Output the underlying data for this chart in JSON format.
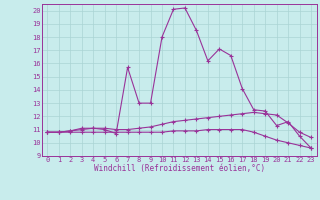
{
  "xlabel": "Windchill (Refroidissement éolien,°C)",
  "bg_color": "#c8ecec",
  "grid_color": "#aad4d4",
  "line_color": "#993399",
  "xlim": [
    -0.5,
    23.5
  ],
  "ylim": [
    9,
    20.5
  ],
  "xticks": [
    0,
    1,
    2,
    3,
    4,
    5,
    6,
    7,
    8,
    9,
    10,
    11,
    12,
    13,
    14,
    15,
    16,
    17,
    18,
    19,
    20,
    21,
    22,
    23
  ],
  "yticks": [
    9,
    10,
    11,
    12,
    13,
    14,
    15,
    16,
    17,
    18,
    19,
    20
  ],
  "curve1_x": [
    0,
    1,
    2,
    3,
    4,
    5,
    6,
    7,
    8,
    9,
    10,
    11,
    12,
    13,
    14,
    15,
    16,
    17,
    18,
    19,
    20,
    21,
    22,
    23
  ],
  "curve1_y": [
    10.8,
    10.8,
    10.9,
    11.1,
    11.1,
    11.0,
    10.7,
    15.7,
    13.0,
    13.0,
    18.0,
    20.1,
    20.2,
    18.5,
    16.2,
    17.1,
    16.6,
    14.1,
    12.5,
    12.4,
    11.3,
    11.6,
    10.5,
    9.6
  ],
  "curve2_x": [
    0,
    1,
    2,
    3,
    4,
    5,
    6,
    7,
    8,
    9,
    10,
    11,
    12,
    13,
    14,
    15,
    16,
    17,
    18,
    19,
    20,
    21,
    22,
    23
  ],
  "curve2_y": [
    10.8,
    10.8,
    10.9,
    11.0,
    11.1,
    11.1,
    11.0,
    11.0,
    11.1,
    11.2,
    11.4,
    11.6,
    11.7,
    11.8,
    11.9,
    12.0,
    12.1,
    12.2,
    12.3,
    12.2,
    12.1,
    11.5,
    10.8,
    10.4
  ],
  "curve3_x": [
    0,
    1,
    2,
    3,
    4,
    5,
    6,
    7,
    8,
    9,
    10,
    11,
    12,
    13,
    14,
    15,
    16,
    17,
    18,
    19,
    20,
    21,
    22,
    23
  ],
  "curve3_y": [
    10.8,
    10.8,
    10.8,
    10.8,
    10.8,
    10.8,
    10.8,
    10.8,
    10.8,
    10.8,
    10.8,
    10.9,
    10.9,
    10.9,
    11.0,
    11.0,
    11.0,
    11.0,
    10.8,
    10.5,
    10.2,
    10.0,
    9.8,
    9.6
  ],
  "marker": "+",
  "markersize": 3.5,
  "markeredgewidth": 0.8,
  "linewidth": 0.8,
  "tick_fontsize": 5.0,
  "xlabel_fontsize": 5.5
}
